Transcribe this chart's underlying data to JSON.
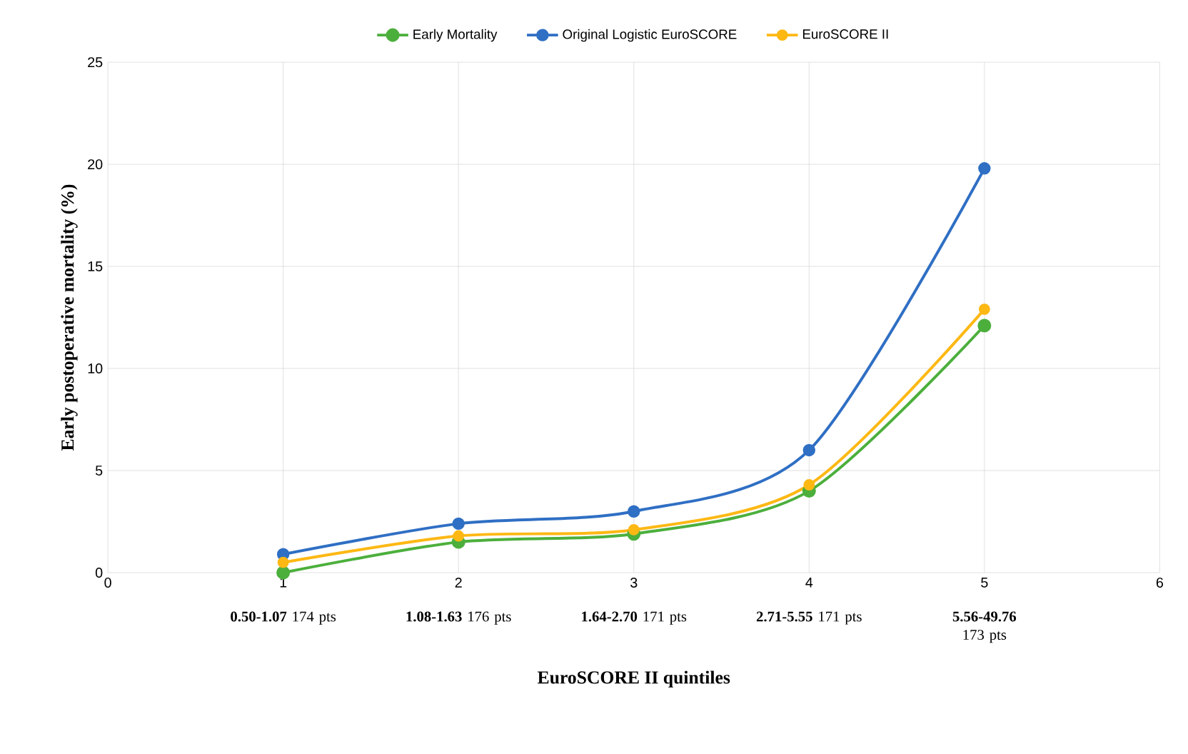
{
  "chart_data": {
    "type": "line",
    "xlabel": "EuroSCORE II quintiles",
    "ylabel": "Early postoperative mortality (%)",
    "x": [
      1,
      2,
      3,
      4,
      5
    ],
    "series": [
      {
        "name": "Early Mortality",
        "color": "#4caf3c",
        "values": [
          0,
          1.5,
          1.9,
          4.0,
          12.1
        ]
      },
      {
        "name": "Original Logistic EuroSCORE",
        "color": "#2f6fc4",
        "values": [
          0.9,
          2.4,
          3.0,
          6.0,
          19.8
        ]
      },
      {
        "name": "EuroSCORE II",
        "color": "#fdb814",
        "values": [
          0.5,
          1.8,
          2.1,
          4.3,
          12.9
        ]
      }
    ],
    "xlim": [
      0,
      6
    ],
    "xticks": [
      0,
      1,
      2,
      3,
      4,
      5,
      6
    ],
    "ylim": [
      0,
      25
    ],
    "yticks": [
      0,
      5,
      10,
      15,
      20,
      25
    ],
    "grid": true,
    "legend": "top",
    "marker": "circle",
    "line_style": "solid",
    "annotations": [
      "**0.50-1.07** 174 pts",
      "**1.08-1.63** 176 pts",
      "**1.64-2.70** 171 pts",
      "**2.71-5.55** 171 pts",
      "**5.56-49.76** 173 pts"
    ]
  }
}
